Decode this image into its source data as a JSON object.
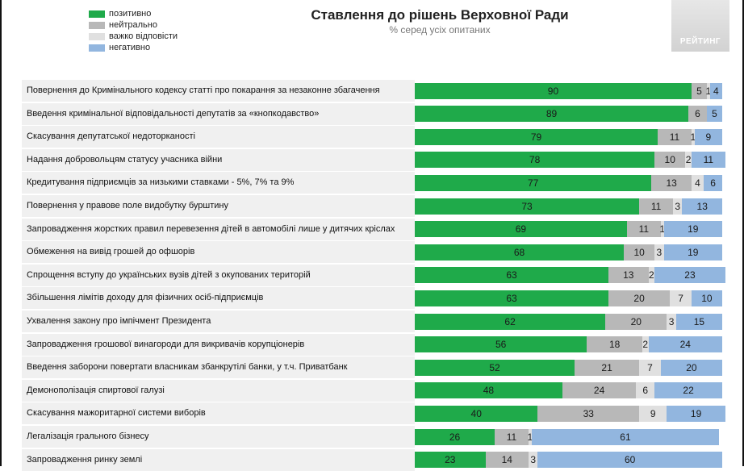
{
  "legend": [
    {
      "label": "позитивно",
      "color": "#1faa4a"
    },
    {
      "label": "нейтрально",
      "color": "#b8b8b8"
    },
    {
      "label": "важко відповісти",
      "color": "#e0e0e0"
    },
    {
      "label": "негативно",
      "color": "#92b6df"
    }
  ],
  "logo": {
    "text": "РЕЙТИНГ"
  },
  "chart_data": {
    "type": "bar",
    "orientation": "horizontal",
    "stacked": true,
    "title": "Ставлення до рішень Верховної Ради",
    "subtitle": "% серед усіх опитаних",
    "legend_position": "top-left",
    "grid": false,
    "categories": [
      "Повернення до Кримінального кодексу статті про покарання за незаконне збагачення",
      "Введення кримінальної відповідальності депутатів за «кнопкодавство»",
      "Скасування депутатської недоторканості",
      "Надання добровольцям статусу учасника війни",
      "Кредитування підприємців за низькими ставками - 5%, 7% та 9%",
      "Повернення у правове поле видобутку бурштину",
      "Запровадження жорстких правил перевезення дітей в автомобілі лише у дитячих кріслах",
      "Обмеження на вивід грошей до офшорів",
      "Спрощення вступу до українських вузів дітей з окупованих територій",
      "Збільшення лімітів доходу для фізичних осіб-підприємців",
      "Ухвалення закону про імпічмент Президента",
      "Запровадження грошової винагороди для викривачів корупціонерів",
      "Введення заборони повертати власникам збанкрутілі банки, у т.ч. Приватбанк",
      "Демонополізація спиртової галузі",
      "Скасування мажоритарної системи виборів",
      "Легалізація грального бізнесу",
      "Запровадження ринку землі"
    ],
    "series": [
      {
        "name": "позитивно",
        "color": "#1faa4a",
        "label_color": "#1a1a1a",
        "values": [
          90,
          89,
          79,
          78,
          77,
          73,
          69,
          68,
          63,
          63,
          62,
          56,
          52,
          48,
          40,
          26,
          23
        ]
      },
      {
        "name": "нейтрально",
        "color": "#b8b8b8",
        "label_color": "#1a1a1a",
        "values": [
          5,
          6,
          11,
          10,
          13,
          11,
          11,
          10,
          13,
          20,
          20,
          18,
          21,
          24,
          33,
          11,
          14
        ]
      },
      {
        "name": "важко відповісти",
        "color": "#e0e0e0",
        "label_color": "#1a1a1a",
        "values": [
          1,
          0,
          1,
          2,
          4,
          3,
          1,
          3,
          2,
          7,
          3,
          2,
          7,
          6,
          9,
          1,
          3
        ]
      },
      {
        "name": "негативно",
        "color": "#92b6df",
        "label_color": "#1a1a1a",
        "values": [
          4,
          5,
          9,
          11,
          6,
          13,
          19,
          19,
          23,
          10,
          15,
          24,
          20,
          22,
          19,
          61,
          60
        ]
      }
    ],
    "xlim": [
      0,
      100
    ]
  }
}
